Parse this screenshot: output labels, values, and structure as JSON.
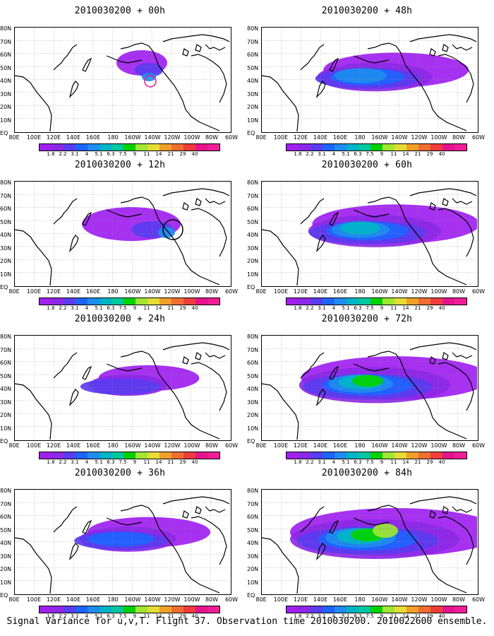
{
  "panels": [
    {
      "title": "2010030200 + 00h",
      "lead_hours": 0
    },
    {
      "title": "2010030200 + 48h",
      "lead_hours": 48
    },
    {
      "title": "2010030200 + 12h",
      "lead_hours": 12
    },
    {
      "title": "2010030200 + 60h",
      "lead_hours": 60
    },
    {
      "title": "2010030200 + 24h",
      "lead_hours": 24
    },
    {
      "title": "2010030200 + 72h",
      "lead_hours": 72
    },
    {
      "title": "2010030200 + 36h",
      "lead_hours": 36
    },
    {
      "title": "2010030200 + 84h",
      "lead_hours": 84
    }
  ],
  "lat_labels": [
    "80N",
    "70N",
    "60N",
    "50N",
    "40N",
    "30N",
    "20N",
    "10N",
    "EQ"
  ],
  "lon_labels": [
    "80E",
    "100E",
    "120E",
    "140E",
    "160E",
    "180",
    "160W",
    "140W",
    "120W",
    "100W",
    "80W",
    "60W"
  ],
  "colorbar": {
    "values": [
      "1.8",
      "2.2",
      "3.1",
      "4",
      "5.1",
      "6.3",
      "7.5",
      "9",
      "11",
      "14",
      "21",
      "29",
      "40"
    ],
    "colors": [
      "#a020f0",
      "#8c28e6",
      "#5a3cf0",
      "#1e64ff",
      "#1e8cf0",
      "#00b4c8",
      "#00c8a0",
      "#00d200",
      "#a0e632",
      "#e6dc32",
      "#f0a028",
      "#f06e32",
      "#f03c3c",
      "#e6148c",
      "#f01e96"
    ]
  },
  "caption": "Signal Variance for u,v,T. Flight 37. Observation time 2010030200. 2010022600 ensemble."
}
